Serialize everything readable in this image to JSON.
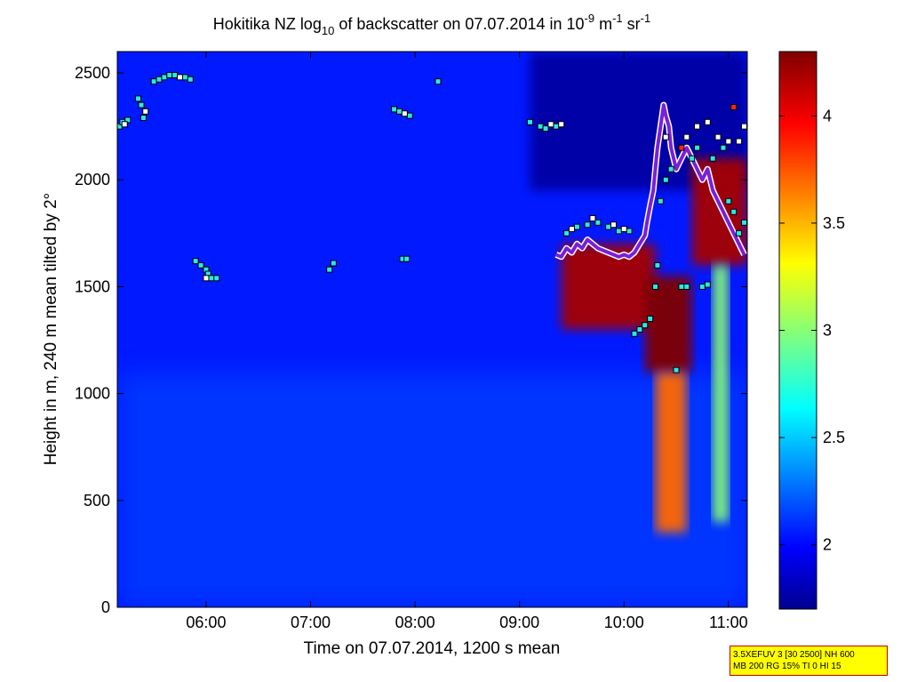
{
  "chart_data": {
    "type": "heatmap",
    "title": {
      "prefix": "Hokitika NZ log",
      "sub": "10",
      "middle": " of backscatter on 07.07.2014 in 10",
      "sup1": "-9",
      "mid2": " m",
      "sup2": "-1",
      "mid3": " sr",
      "sup3": "-1"
    },
    "xlabel": "Time on 07.07.2014, 1200 s mean",
    "ylabel": "Height in m, 240 m mean tilted by 2°",
    "xlim_hours": [
      5.15,
      11.18
    ],
    "ylim": [
      0,
      2600
    ],
    "x_ticks": [
      {
        "value": 6,
        "label": "06:00"
      },
      {
        "value": 7,
        "label": "07:00"
      },
      {
        "value": 8,
        "label": "08:00"
      },
      {
        "value": 9,
        "label": "09:00"
      },
      {
        "value": 10,
        "label": "10:00"
      },
      {
        "value": 11,
        "label": "11:00"
      }
    ],
    "y_ticks": [
      {
        "value": 0,
        "label": "0"
      },
      {
        "value": 500,
        "label": "500"
      },
      {
        "value": 1000,
        "label": "1000"
      },
      {
        "value": 1500,
        "label": "1500"
      },
      {
        "value": 2000,
        "label": "2000"
      },
      {
        "value": 2500,
        "label": "2500"
      }
    ],
    "colorbar": {
      "range": [
        1.7,
        4.3
      ],
      "ticks": [
        {
          "value": 2,
          "label": "2"
        },
        {
          "value": 2.5,
          "label": "2.5"
        },
        {
          "value": 3,
          "label": "3"
        },
        {
          "value": 3.5,
          "label": "3.5"
        },
        {
          "value": 4,
          "label": "4"
        }
      ],
      "colormap": "jet"
    },
    "background_level": 2.05,
    "regions": [
      {
        "name": "low-level haze",
        "x": [
          5.15,
          11.18
        ],
        "y": [
          0,
          1100
        ],
        "value": 2.15
      },
      {
        "name": "upper clear air",
        "x": [
          9.1,
          11.18
        ],
        "y": [
          1950,
          2600
        ],
        "value": 1.75
      },
      {
        "name": "cloud layer 1",
        "x": [
          9.4,
          10.3
        ],
        "y": [
          1300,
          1700
        ],
        "value": 4.2
      },
      {
        "name": "cloud column 2",
        "x": [
          10.2,
          10.65
        ],
        "y": [
          1100,
          1550
        ],
        "value": 4.3
      },
      {
        "name": "precip column 2",
        "x": [
          10.3,
          10.6
        ],
        "y": [
          350,
          1100
        ],
        "value": 3.7
      },
      {
        "name": "cloud column 3",
        "x": [
          10.65,
          11.18
        ],
        "y": [
          1600,
          2100
        ],
        "value": 4.2
      },
      {
        "name": "precip column 3",
        "x": [
          10.85,
          11.0
        ],
        "y": [
          400,
          1600
        ],
        "value": 3.0
      }
    ],
    "marker_series": {
      "cyan": [
        [
          5.17,
          2250
        ],
        [
          5.2,
          2270
        ],
        [
          5.25,
          2280
        ],
        [
          5.35,
          2380
        ],
        [
          5.38,
          2350
        ],
        [
          5.4,
          2290
        ],
        [
          5.5,
          2460
        ],
        [
          5.55,
          2470
        ],
        [
          5.6,
          2480
        ],
        [
          5.65,
          2490
        ],
        [
          5.7,
          2490
        ],
        [
          5.8,
          2480
        ],
        [
          5.85,
          2470
        ],
        [
          5.9,
          1620
        ],
        [
          5.95,
          1600
        ],
        [
          6.0,
          1580
        ],
        [
          6.02,
          1560
        ],
        [
          6.05,
          1540
        ],
        [
          6.1,
          1540
        ],
        [
          7.18,
          1580
        ],
        [
          7.22,
          1610
        ],
        [
          7.8,
          2330
        ],
        [
          7.85,
          2320
        ],
        [
          7.88,
          1630
        ],
        [
          7.92,
          1630
        ],
        [
          7.95,
          2300
        ],
        [
          8.22,
          2460
        ],
        [
          9.1,
          2270
        ],
        [
          9.2,
          2250
        ],
        [
          9.25,
          2240
        ],
        [
          9.35,
          2250
        ],
        [
          9.45,
          1750
        ],
        [
          9.55,
          1780
        ],
        [
          9.65,
          1790
        ],
        [
          9.75,
          1800
        ],
        [
          9.85,
          1780
        ],
        [
          9.95,
          1760
        ],
        [
          10.05,
          1760
        ],
        [
          10.1,
          1280
        ],
        [
          10.15,
          1300
        ],
        [
          10.2,
          1320
        ],
        [
          10.25,
          1350
        ],
        [
          10.3,
          1500
        ],
        [
          10.32,
          1600
        ],
        [
          10.35,
          1900
        ],
        [
          10.4,
          2000
        ],
        [
          10.45,
          2050
        ],
        [
          10.5,
          1110
        ],
        [
          10.55,
          1500
        ],
        [
          10.6,
          1500
        ],
        [
          10.65,
          2100
        ],
        [
          10.7,
          2150
        ],
        [
          10.75,
          1500
        ],
        [
          10.8,
          1510
        ],
        [
          10.85,
          2100
        ],
        [
          10.95,
          2150
        ],
        [
          11.0,
          1900
        ],
        [
          11.05,
          1850
        ],
        [
          11.1,
          1750
        ],
        [
          11.15,
          1800
        ]
      ],
      "white": [
        [
          5.22,
          2260
        ],
        [
          5.42,
          2320
        ],
        [
          5.75,
          2480
        ],
        [
          6.0,
          1540
        ],
        [
          7.9,
          2310
        ],
        [
          9.3,
          2260
        ],
        [
          9.4,
          2260
        ],
        [
          9.5,
          1770
        ],
        [
          9.7,
          1820
        ],
        [
          9.9,
          1790
        ],
        [
          10.0,
          1770
        ],
        [
          10.4,
          2200
        ],
        [
          10.6,
          2200
        ],
        [
          10.7,
          2250
        ],
        [
          10.8,
          2270
        ],
        [
          10.9,
          2200
        ],
        [
          11.0,
          2180
        ],
        [
          11.1,
          2180
        ],
        [
          11.15,
          2250
        ]
      ],
      "red": [
        [
          10.55,
          2150
        ],
        [
          11.05,
          2340
        ]
      ],
      "purple_line": [
        [
          9.35,
          1650
        ],
        [
          9.4,
          1640
        ],
        [
          9.45,
          1680
        ],
        [
          9.5,
          1660
        ],
        [
          9.55,
          1700
        ],
        [
          9.6,
          1680
        ],
        [
          9.65,
          1720
        ],
        [
          9.7,
          1700
        ],
        [
          9.75,
          1680
        ],
        [
          9.8,
          1670
        ],
        [
          9.85,
          1660
        ],
        [
          9.9,
          1650
        ],
        [
          9.95,
          1640
        ],
        [
          10.0,
          1650
        ],
        [
          10.05,
          1640
        ],
        [
          10.1,
          1660
        ],
        [
          10.15,
          1700
        ],
        [
          10.2,
          1740
        ],
        [
          10.22,
          1800
        ],
        [
          10.25,
          1880
        ],
        [
          10.28,
          1950
        ],
        [
          10.3,
          2050
        ],
        [
          10.32,
          2150
        ],
        [
          10.35,
          2250
        ],
        [
          10.38,
          2350
        ],
        [
          10.4,
          2300
        ],
        [
          10.43,
          2250
        ],
        [
          10.45,
          2150
        ],
        [
          10.5,
          2050
        ],
        [
          10.55,
          2100
        ],
        [
          10.6,
          2150
        ],
        [
          10.65,
          2100
        ],
        [
          10.7,
          2050
        ],
        [
          10.75,
          2000
        ],
        [
          10.8,
          2050
        ],
        [
          10.85,
          1950
        ],
        [
          10.9,
          1900
        ],
        [
          10.95,
          1850
        ],
        [
          11.0,
          1800
        ],
        [
          11.05,
          1750
        ],
        [
          11.1,
          1700
        ],
        [
          11.15,
          1650
        ]
      ]
    }
  },
  "info_box": {
    "line1": "3.5XEFUV 3 [30 2500] NH 600",
    "line2": "MB 200 RG 15% TI 0 HI 15"
  }
}
